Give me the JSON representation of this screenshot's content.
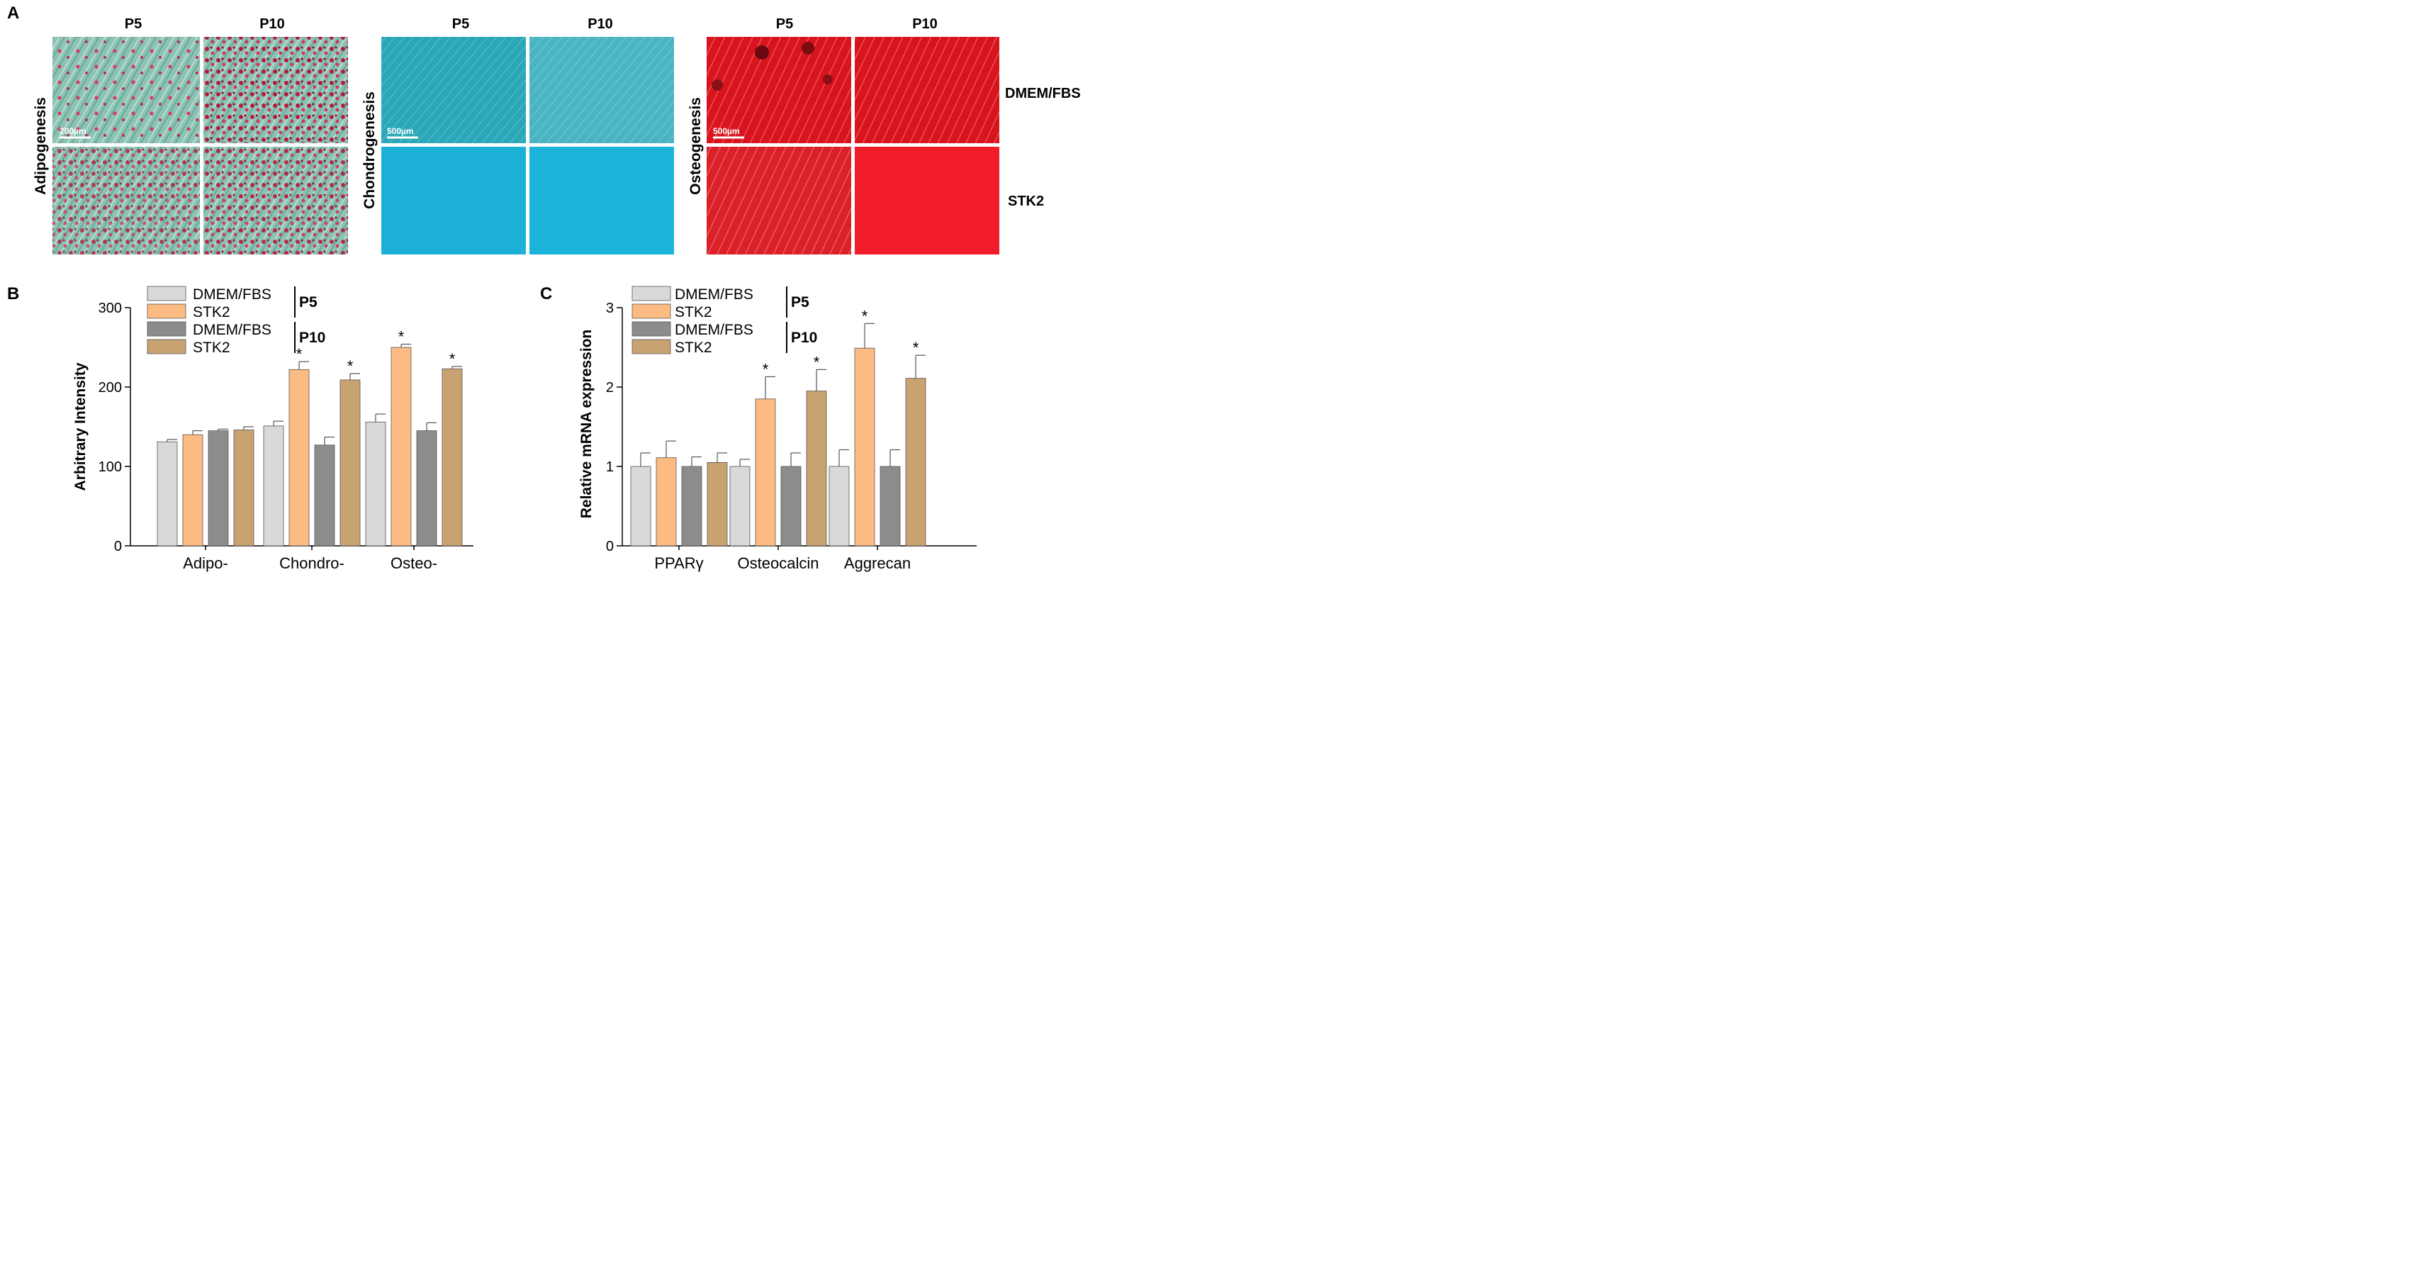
{
  "panels": {
    "A": {
      "letter": "A",
      "groups": [
        {
          "name": "Adipogenesis",
          "cols": [
            "P5",
            "P10"
          ],
          "scale_bar": "200µm"
        },
        {
          "name": "Chondrogenesis",
          "cols": [
            "P5",
            "P10"
          ],
          "scale_bar": "500µm"
        },
        {
          "name": "Osteogenesis",
          "cols": [
            "P5",
            "P10"
          ],
          "scale_bar": "500µm"
        }
      ],
      "row_labels": [
        "DMEM/FBS",
        "STK2"
      ]
    },
    "B": {
      "letter": "B"
    },
    "C": {
      "letter": "C"
    }
  },
  "colors": {
    "dmem_p5": "#d9d9d9",
    "stk2_p5": "#fcbb82",
    "dmem_p10": "#8c8c8c",
    "stk2_p10": "#c9a272"
  },
  "chart_data": [
    {
      "type": "bar",
      "panel": "B",
      "categories": [
        "Adipo-",
        "Chondro-",
        "Osteo-"
      ],
      "series": [
        {
          "name": "DMEM/FBS",
          "group": "P5",
          "values": [
            131,
            151,
            156
          ],
          "errors": [
            3,
            6,
            10
          ],
          "sig": [
            false,
            false,
            false
          ]
        },
        {
          "name": "STK2",
          "group": "P5",
          "values": [
            140,
            222,
            250
          ],
          "errors": [
            5,
            10,
            4
          ],
          "sig": [
            false,
            true,
            true
          ]
        },
        {
          "name": "DMEM/FBS",
          "group": "P10",
          "values": [
            145,
            127,
            145
          ],
          "errors": [
            2,
            10,
            10
          ],
          "sig": [
            false,
            false,
            false
          ]
        },
        {
          "name": "STK2",
          "group": "P10",
          "values": [
            146,
            209,
            223
          ],
          "errors": [
            4,
            8,
            3
          ],
          "sig": [
            false,
            true,
            true
          ]
        }
      ],
      "ylabel": "Arbitrary Intensity",
      "xlabel": "",
      "ylim": [
        0,
        300
      ],
      "yticks": [
        0,
        100,
        200,
        300
      ],
      "legend_groups": [
        "P5",
        "P10"
      ],
      "sig_symbol": "*"
    },
    {
      "type": "bar",
      "panel": "C",
      "categories": [
        "PPARγ",
        "Osteocalcin",
        "Aggrecan"
      ],
      "series": [
        {
          "name": "DMEM/FBS",
          "group": "P5",
          "values": [
            1.0,
            1.0,
            1.0
          ],
          "errors": [
            0.17,
            0.09,
            0.21
          ],
          "sig": [
            false,
            false,
            false
          ]
        },
        {
          "name": "STK2",
          "group": "P5",
          "values": [
            1.11,
            1.85,
            2.49
          ],
          "errors": [
            0.21,
            0.28,
            0.31
          ],
          "sig": [
            false,
            true,
            true
          ]
        },
        {
          "name": "DMEM/FBS",
          "group": "P10",
          "values": [
            1.0,
            1.0,
            1.0
          ],
          "errors": [
            0.12,
            0.17,
            0.21
          ],
          "sig": [
            false,
            false,
            false
          ]
        },
        {
          "name": "STK2",
          "group": "P10",
          "values": [
            1.05,
            1.95,
            2.11
          ],
          "errors": [
            0.12,
            0.27,
            0.29
          ],
          "sig": [
            false,
            true,
            true
          ]
        }
      ],
      "ylabel": "Relative mRNA expression",
      "xlabel": "",
      "ylim": [
        0,
        3
      ],
      "yticks": [
        0,
        1,
        2,
        3
      ],
      "legend_groups": [
        "P5",
        "P10"
      ],
      "sig_symbol": "*"
    }
  ]
}
